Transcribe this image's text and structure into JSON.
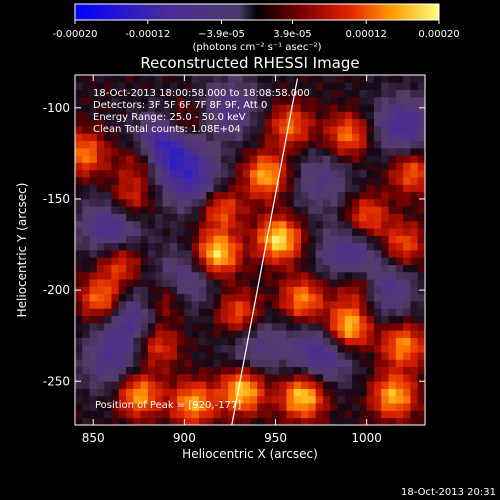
{
  "chart_data": {
    "type": "heatmap",
    "title": "Reconstructed RHESSI Image",
    "xlabel": "Heliocentric X (arcsec)",
    "ylabel": "Heliocentric Y (arcsec)",
    "xlim": [
      840,
      1032
    ],
    "ylim": [
      -274,
      -82
    ],
    "x_ticks": [
      850,
      900,
      950,
      1000
    ],
    "y_ticks": [
      -100,
      -150,
      -200,
      -250
    ],
    "colorbar": {
      "range": [
        -0.0002,
        0.0002
      ],
      "tick_labels": [
        "-0.00020",
        "-0.00012",
        "−3.9e-05",
        "3.9e-05",
        "0.00012",
        "0.00020"
      ],
      "tick_values": [
        -0.0002,
        -0.00012,
        -3.9e-05,
        3.9e-05,
        0.00012,
        0.0002
      ],
      "units_label": "(photons cm⁻² s⁻¹ asec⁻²)"
    },
    "annotations": [
      "18-Oct-2013 18:00:58.000 to 18:08:58.000",
      "Detectors: 3F 5F 6F 7F 8F 9F, Att 0",
      "Energy Range: 25.0 - 50.0 keV",
      "Clean     Total counts: 1.08E+04"
    ],
    "peak_text": "Position of Peak = [920,-177]",
    "limb_line": {
      "x": [
        926,
        962
      ],
      "y": [
        -274,
        -84
      ]
    },
    "hotspots": [
      {
        "x": 845,
        "y": -125,
        "v": 0.00013
      },
      {
        "x": 870,
        "y": -150,
        "v": 0.0001
      },
      {
        "x": 865,
        "y": -185,
        "v": 0.00011
      },
      {
        "x": 855,
        "y": -205,
        "v": 0.00015
      },
      {
        "x": 885,
        "y": -230,
        "v": 0.00011
      },
      {
        "x": 875,
        "y": -257,
        "v": 0.00016
      },
      {
        "x": 905,
        "y": -262,
        "v": 0.00015
      },
      {
        "x": 900,
        "y": -108,
        "v": 9e-05
      },
      {
        "x": 920,
        "y": -155,
        "v": 0.00012
      },
      {
        "x": 918,
        "y": -180,
        "v": 0.00019
      },
      {
        "x": 930,
        "y": -213,
        "v": 0.00012
      },
      {
        "x": 932,
        "y": -255,
        "v": 0.00018
      },
      {
        "x": 958,
        "y": -110,
        "v": 0.00012
      },
      {
        "x": 945,
        "y": -137,
        "v": 0.00016
      },
      {
        "x": 952,
        "y": -172,
        "v": 0.00019
      },
      {
        "x": 965,
        "y": -205,
        "v": 0.00014
      },
      {
        "x": 990,
        "y": -115,
        "v": 0.00013
      },
      {
        "x": 1000,
        "y": -160,
        "v": 0.00012
      },
      {
        "x": 995,
        "y": -198,
        "v": 0.00011
      },
      {
        "x": 990,
        "y": -220,
        "v": 0.00019
      },
      {
        "x": 1025,
        "y": -135,
        "v": 0.00012
      },
      {
        "x": 1020,
        "y": -175,
        "v": 0.00011
      },
      {
        "x": 1020,
        "y": -230,
        "v": 0.00014
      },
      {
        "x": 965,
        "y": -258,
        "v": 0.00019
      },
      {
        "x": 1015,
        "y": -258,
        "v": 0.00016
      },
      {
        "x": 890,
        "y": -205,
        "v": 0.0001
      },
      {
        "x": 875,
        "y": -130,
        "v": 8e-05
      }
    ],
    "coldspots": [
      {
        "x": 890,
        "y": -120,
        "v": -0.00016
      },
      {
        "x": 905,
        "y": -140,
        "v": -0.00012
      },
      {
        "x": 860,
        "y": -165,
        "v": -0.00012
      },
      {
        "x": 900,
        "y": -195,
        "v": -0.0001
      },
      {
        "x": 870,
        "y": -215,
        "v": -0.00011
      },
      {
        "x": 925,
        "y": -100,
        "v": -9e-05
      },
      {
        "x": 975,
        "y": -140,
        "v": -8e-05
      },
      {
        "x": 990,
        "y": -180,
        "v": -0.00011
      },
      {
        "x": 1010,
        "y": -200,
        "v": -0.0001
      },
      {
        "x": 975,
        "y": -235,
        "v": -0.00012
      },
      {
        "x": 1020,
        "y": -110,
        "v": -0.00012
      },
      {
        "x": 860,
        "y": -240,
        "v": -9e-05
      },
      {
        "x": 940,
        "y": -230,
        "v": -8e-05
      }
    ]
  },
  "footer_timestamp": "18-Oct-2013 20:31"
}
